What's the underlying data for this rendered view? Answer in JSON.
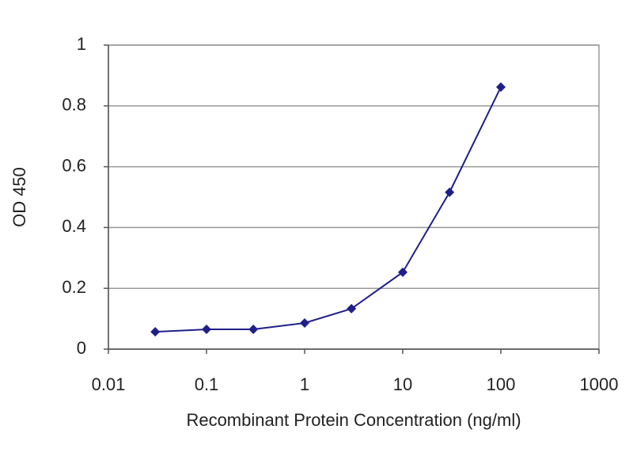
{
  "chart_data": {
    "type": "line",
    "x": [
      0.03,
      0.1,
      0.3,
      1,
      3,
      10,
      30,
      100
    ],
    "values": [
      0.057,
      0.065,
      0.065,
      0.086,
      0.133,
      0.253,
      0.516,
      0.862
    ],
    "color": "#1f1f8a",
    "xlim": [
      0.01,
      1000
    ],
    "xticks": [
      0.01,
      0.1,
      1,
      10,
      100,
      1000
    ],
    "x_log": true,
    "ylim": [
      0,
      1
    ],
    "yticks": [
      0,
      0.2,
      0.4,
      0.6,
      0.8,
      1
    ],
    "grid": true,
    "xlabel": "Recombinant Protein Concentration (ng/ml)",
    "ylabel": "OD 450"
  }
}
